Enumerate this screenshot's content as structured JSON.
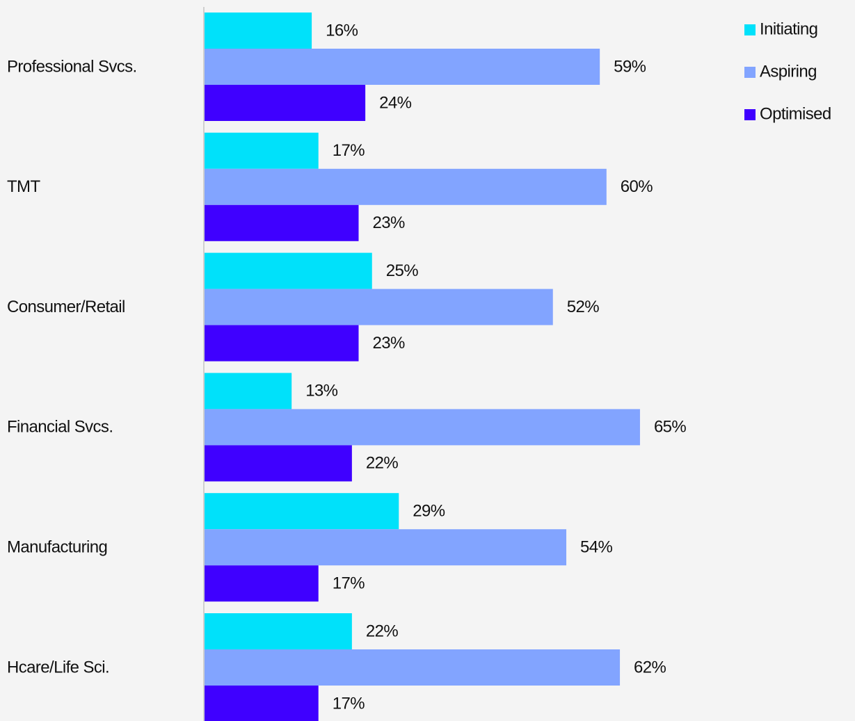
{
  "chart_data": {
    "type": "bar",
    "orientation": "horizontal",
    "categories": [
      "Professional Svcs.",
      "TMT",
      "Consumer/Retail",
      "Financial Svcs.",
      "Manufacturing",
      "Hcare/Life Sci."
    ],
    "series": [
      {
        "name": "Initiating",
        "color": "#00e1fa",
        "values": [
          16,
          17,
          25,
          13,
          29,
          22
        ],
        "value_labels": [
          "16%",
          "17%",
          "25%",
          "13%",
          "29%",
          "22%"
        ]
      },
      {
        "name": "Aspiring",
        "color": "#82a4ff",
        "values": [
          59,
          60,
          52,
          65,
          54,
          62
        ],
        "value_labels": [
          "59%",
          "60%",
          "52%",
          "65%",
          "54%",
          "62%"
        ]
      },
      {
        "name": "Optimised",
        "color": "#3f00ff",
        "values": [
          24,
          23,
          23,
          22,
          17,
          17
        ],
        "value_labels": [
          "24%",
          "23%",
          "23%",
          "22%",
          "17%",
          "17%"
        ]
      }
    ],
    "legend": "top-right"
  }
}
